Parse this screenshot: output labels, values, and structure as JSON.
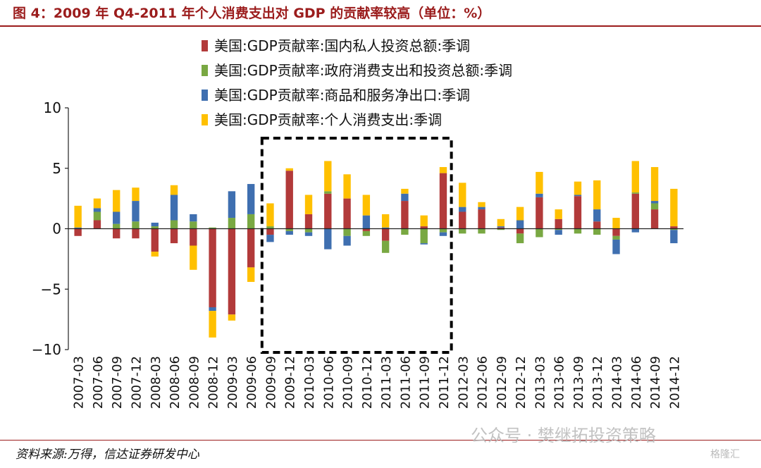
{
  "title": "图 4：2009 年 Q4-2011 年个人消费支出对 GDP 的贡献率较高（单位：%）",
  "source": "资料来源:万得，信达证券研发中心",
  "watermark": "公众号 · 樊继拓投资策略",
  "watermark_badge": "格隆汇",
  "colors": {
    "title": "#9b1c1c",
    "investment": "#b23a3a",
    "government": "#79a842",
    "netexport": "#3f6fb0",
    "consumption": "#ffc000",
    "axis": "#222222"
  },
  "chart_data": {
    "type": "bar",
    "stacked": true,
    "ylim": [
      -10,
      10
    ],
    "yticks": [
      10,
      5,
      0,
      -5,
      -10
    ],
    "ytick_labels": [
      "10",
      "5",
      "0",
      "−5",
      "−10"
    ],
    "categories": [
      "2007-03",
      "2007-06",
      "2007-09",
      "2007-12",
      "2008-03",
      "2008-06",
      "2008-09",
      "2008-12",
      "2009-03",
      "2009-06",
      "2009-09",
      "2009-12",
      "2010-03",
      "2010-06",
      "2010-09",
      "2010-12",
      "2011-03",
      "2011-06",
      "2011-09",
      "2011-12",
      "2012-03",
      "2012-06",
      "2012-09",
      "2012-12",
      "2013-03",
      "2013-06",
      "2013-09",
      "2013-12",
      "2014-03",
      "2014-06",
      "2014-09",
      "2014-12"
    ],
    "series": [
      {
        "key": "investment",
        "name": "美国:GDP贡献率:国内私人投资总额:季调",
        "values": [
          -0.6,
          0.7,
          -0.8,
          -0.8,
          -1.9,
          -1.2,
          -1.4,
          -6.5,
          -7.1,
          -3.2,
          -0.5,
          4.8,
          1.2,
          2.9,
          2.5,
          -0.2,
          -1.0,
          2.3,
          0.2,
          4.6,
          1.4,
          1.6,
          0.1,
          -0.4,
          2.6,
          0.8,
          2.7,
          0.6,
          -0.6,
          2.9,
          1.6,
          0.2
        ]
      },
      {
        "key": "government",
        "name": "美国:GDP贡献率:政府消费支出和投资总额:季调",
        "values": [
          0.0,
          0.7,
          0.4,
          0.6,
          0.2,
          0.7,
          0.6,
          0.1,
          0.9,
          1.2,
          0.2,
          -0.2,
          -0.3,
          0.2,
          -0.6,
          -0.4,
          -1.0,
          -0.5,
          -1.2,
          -0.3,
          -0.4,
          -0.4,
          -0.1,
          -0.8,
          -0.7,
          -0.1,
          -0.4,
          -0.5,
          -0.3,
          0.1,
          0.5,
          -0.1
        ]
      },
      {
        "key": "netexport",
        "name": "美国:GDP贡献率:商品和服务净出口:季调",
        "values": [
          0.1,
          0.3,
          1.0,
          1.7,
          0.3,
          2.1,
          0.6,
          -0.3,
          2.2,
          2.5,
          -0.6,
          -0.3,
          -0.3,
          -1.7,
          -0.8,
          1.1,
          0.1,
          0.6,
          -0.1,
          -0.3,
          0.4,
          0.2,
          0.1,
          0.7,
          0.3,
          -0.4,
          0.1,
          1.0,
          -1.2,
          -0.3,
          0.2,
          -1.1
        ]
      },
      {
        "key": "consumption",
        "name": "美国:GDP贡献率:个人消费支出:季调",
        "values": [
          1.8,
          0.8,
          1.8,
          1.1,
          -0.4,
          0.8,
          -2.0,
          -2.2,
          -0.5,
          -1.2,
          1.9,
          0.2,
          1.6,
          2.5,
          2.0,
          1.7,
          1.1,
          0.4,
          0.9,
          0.5,
          2.0,
          0.4,
          0.6,
          1.1,
          1.8,
          0.8,
          1.1,
          2.4,
          0.9,
          2.6,
          2.8,
          3.1
        ]
      }
    ],
    "highlight": {
      "from": "2009-09",
      "to": "2011-12"
    }
  }
}
